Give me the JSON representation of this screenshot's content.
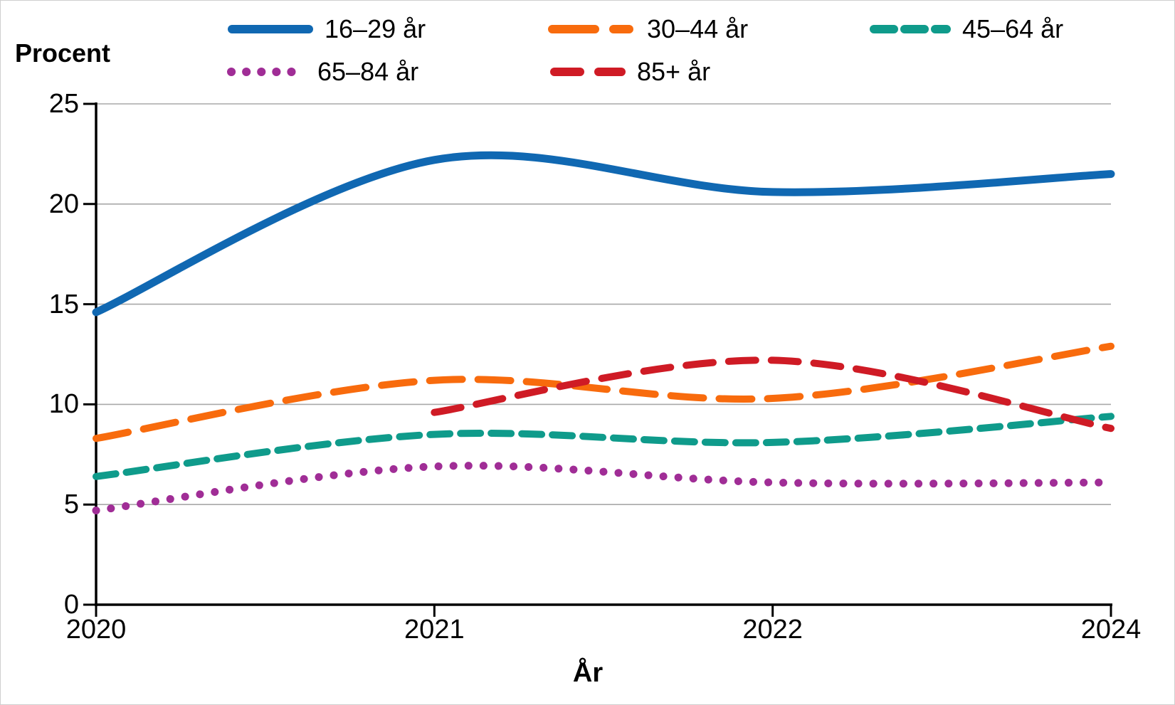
{
  "chart_data": {
    "type": "line",
    "title": "",
    "ylabel": "Procent",
    "xlabel": "År",
    "ylim": [
      0,
      25
    ],
    "yticks": [
      0,
      5,
      10,
      15,
      20,
      25
    ],
    "grid": "horizontal",
    "legend_position": "top",
    "categories": [
      "2020",
      "2021",
      "2022",
      "2024"
    ],
    "series": [
      {
        "name": "16–29 år",
        "color": "#1068B2",
        "line_style": "solid",
        "values": [
          14.6,
          22.2,
          20.6,
          21.5
        ]
      },
      {
        "name": "30–44 år",
        "color": "#F86B0D",
        "line_style": "long-dash",
        "values": [
          8.3,
          11.2,
          10.3,
          12.9
        ]
      },
      {
        "name": "45–64 år",
        "color": "#0F9B8B",
        "line_style": "short-dash",
        "values": [
          6.4,
          8.5,
          8.1,
          9.4
        ]
      },
      {
        "name": "65–84 år",
        "color": "#A02D96",
        "line_style": "dotted",
        "values": [
          4.7,
          6.9,
          6.1,
          6.1
        ]
      },
      {
        "name": "85+ år",
        "color": "#CF1B25",
        "line_style": "med-dash",
        "values": [
          null,
          9.6,
          12.2,
          8.8
        ]
      }
    ],
    "colors": {
      "axis": "#000000",
      "gridline": "#a8a8a8",
      "background": "#ffffff"
    }
  }
}
